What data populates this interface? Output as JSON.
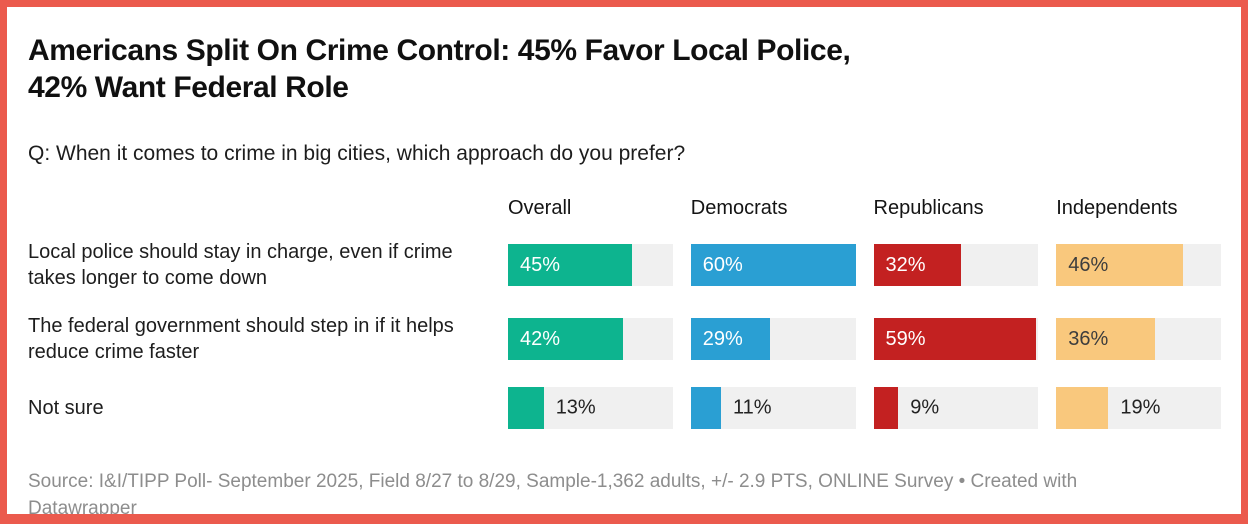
{
  "frame": {
    "border_color": "#eb5a4d",
    "background": "#ffffff"
  },
  "header": {
    "title_lines": [
      "Americans Split On Crime Control: 45% Favor Local Police,",
      "42% Want Federal Role"
    ],
    "subtitle": "Q: When it comes to crime in big cities, which approach do you prefer?"
  },
  "footer": {
    "source_lines": [
      "Source: I&I/TIPP Poll- September 2025, Field 8/27 to 8/29, Sample-1,362 adults, +/- 2.9 PTS, ONLINE Survey • Created with",
      "Datawrapper"
    ]
  },
  "chart_data": {
    "type": "bar",
    "orientation": "horizontal",
    "title": "Americans Split On Crime Control: 45% Favor Local Police, 42% Want Federal Role",
    "subtitle": "Q: When it comes to crime in big cities, which approach do you prefer?",
    "source": "Source: I&I/TIPP Poll- September 2025, Field 8/27 to 8/29, Sample-1,362 adults, +/- 2.9 PTS, ONLINE Survey • Created with Datawrapper",
    "value_suffix": "%",
    "scale_max": 60,
    "track_color": "#f0f0f0",
    "outside_label_color": "#222222",
    "label_inside_threshold": 25,
    "legend_position": "column-headers-top",
    "grid": false,
    "columns": [
      {
        "label": "Overall",
        "color": "#0db48f",
        "value_text_color": "#ffffff"
      },
      {
        "label": "Democrats",
        "color": "#2a9fd3",
        "value_text_color": "#ffffff"
      },
      {
        "label": "Republicans",
        "color": "#c32121",
        "value_text_color": "#ffffff"
      },
      {
        "label": "Independents",
        "color": "#f9c87d",
        "value_text_color": "#3d3d3d"
      }
    ],
    "rows": [
      {
        "label": "Local police should stay in charge, even if crime takes longer to come down",
        "values": [
          45,
          60,
          32,
          46
        ]
      },
      {
        "label": "The federal government should step in if it helps reduce crime faster",
        "values": [
          42,
          29,
          59,
          36
        ]
      },
      {
        "label": "Not sure",
        "values": [
          13,
          11,
          9,
          19
        ]
      }
    ]
  }
}
